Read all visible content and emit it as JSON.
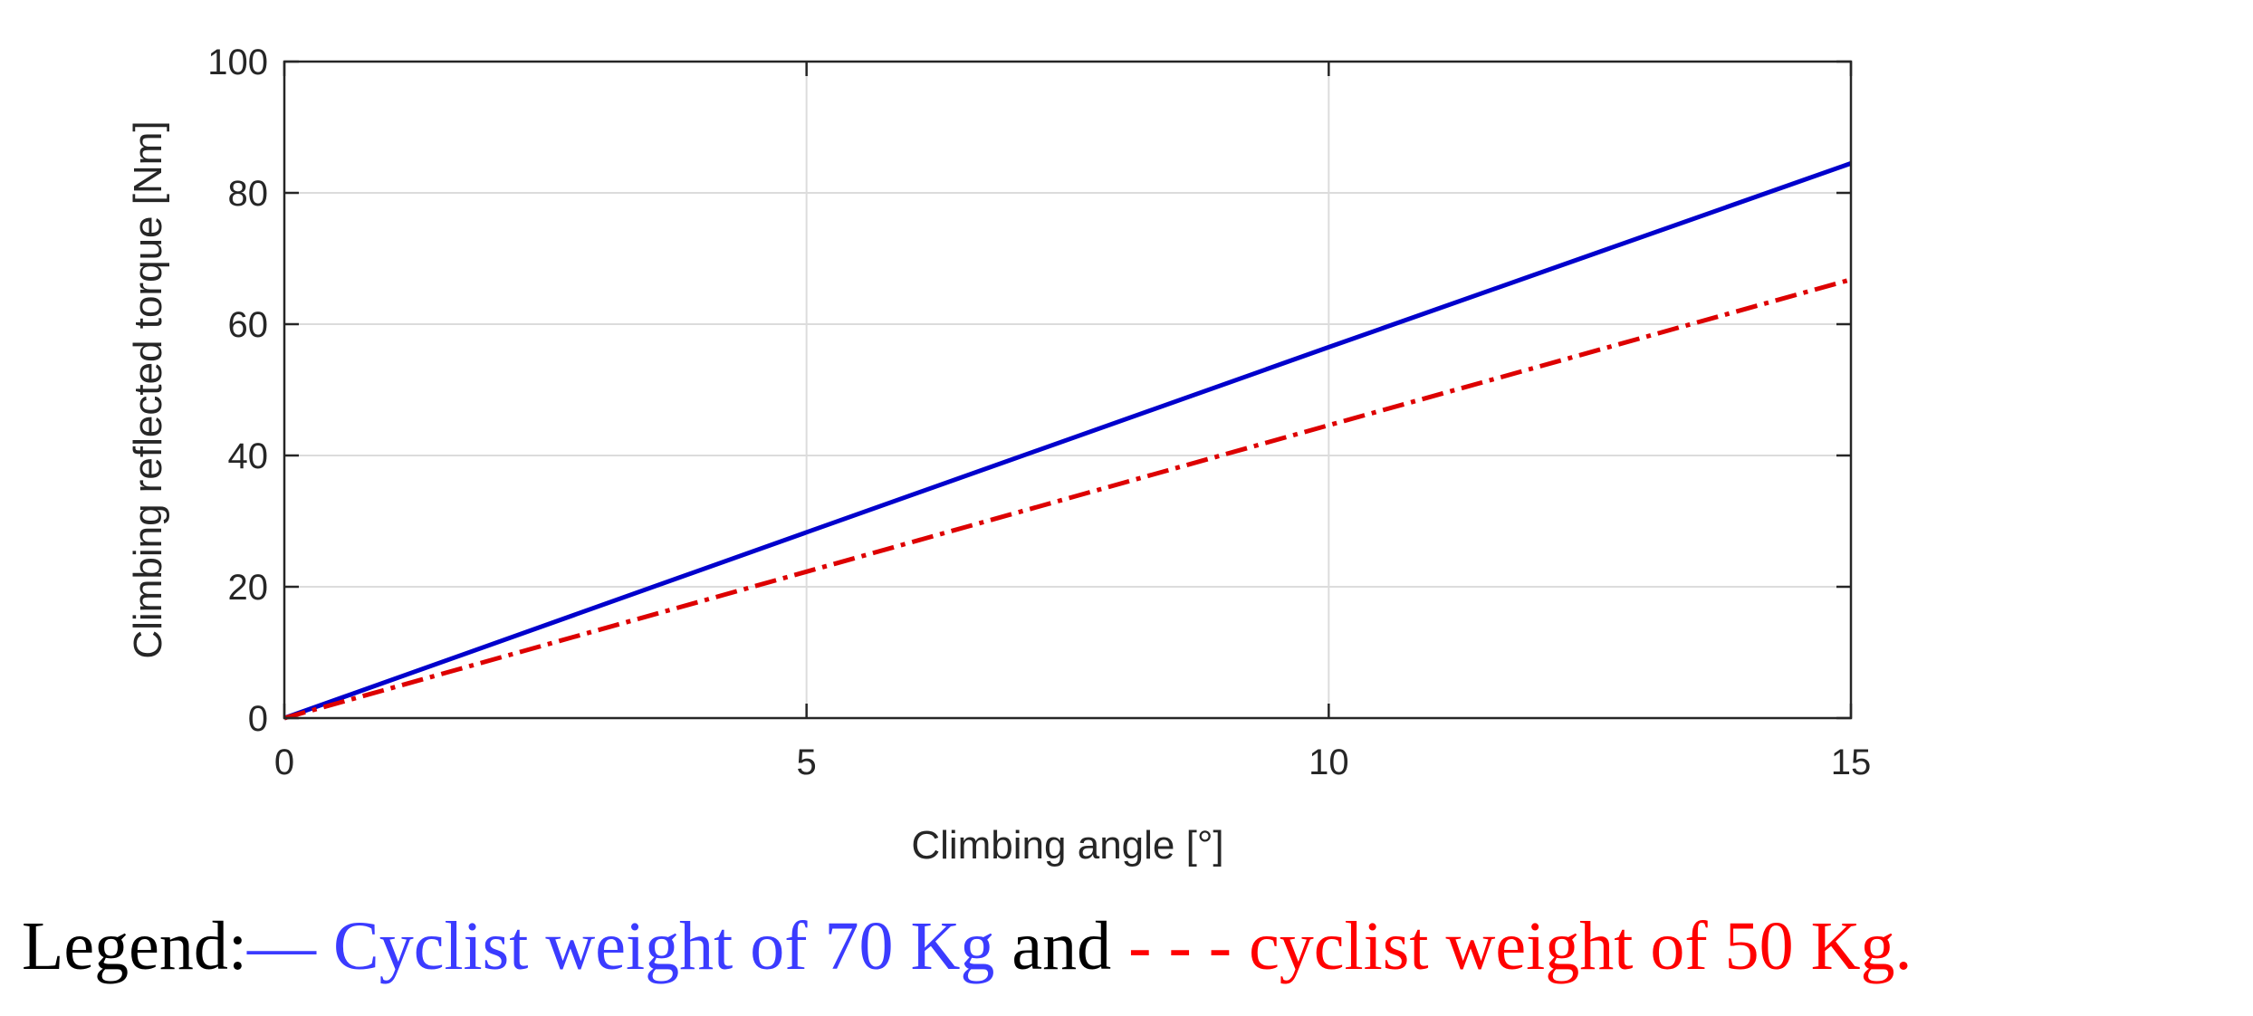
{
  "colors": {
    "series_blue": "#0000cc",
    "series_red": "#dd0000",
    "legend_blue": "#3b3bff",
    "legend_red": "#ff0000",
    "grid": "#dcdcdc",
    "axis": "#262626"
  },
  "chart_data": {
    "type": "line",
    "xlabel": "Climbing angle [°]",
    "ylabel": "Climbing reflected torque [Nm]",
    "xlim": [
      0,
      15
    ],
    "ylim": [
      0,
      100
    ],
    "xticks": [
      0,
      5,
      10,
      15
    ],
    "yticks": [
      0,
      20,
      40,
      60,
      80,
      100
    ],
    "grid": true,
    "series": [
      {
        "name": "Cyclist weight of 70 Kg",
        "style": "solid",
        "color": "#0000cc",
        "x": [
          0,
          5,
          10,
          15
        ],
        "y": [
          0,
          28.3,
          56.5,
          84.5
        ]
      },
      {
        "name": "cyclist weight of 50 Kg",
        "style": "dash-dot",
        "color": "#dd0000",
        "x": [
          0,
          5,
          10,
          15
        ],
        "y": [
          0,
          22.3,
          44.6,
          66.8
        ]
      }
    ]
  },
  "legend": {
    "prefix": "Legend:",
    "blue_marker": "—",
    "blue_text": "Cyclist weight of 70 Kg",
    "joiner": "and",
    "red_marker": "- - -",
    "red_text": "cyclist weight of 50 Kg."
  }
}
